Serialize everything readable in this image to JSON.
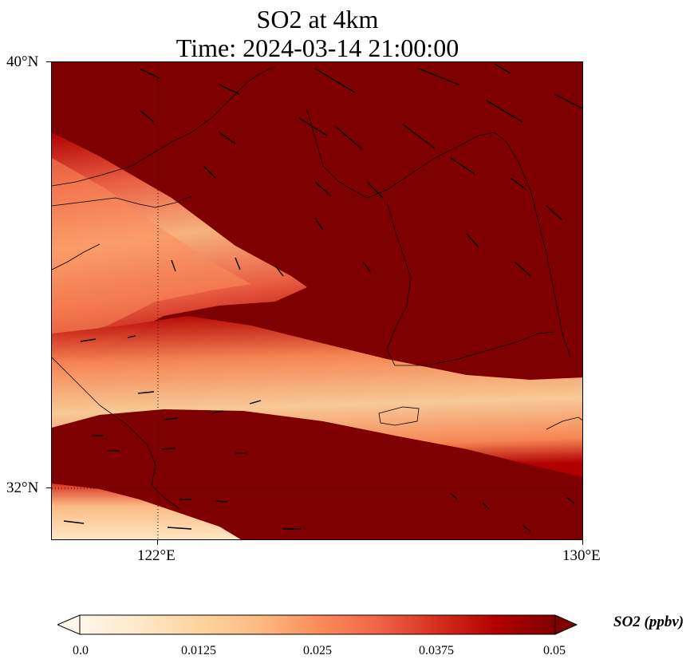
{
  "title": {
    "line1": "SO2 at 4km",
    "line2": "Time: 2024-03-14 21:00:00"
  },
  "axes": {
    "y_ticks": [
      "40°N",
      "32°N"
    ],
    "x_ticks": [
      "122°E",
      "130°E"
    ]
  },
  "colorbar": {
    "label": "SO2 (ppbv)",
    "ticks": [
      "0.0",
      "0.0125",
      "0.025",
      "0.0375",
      "0.05"
    ],
    "range": [
      0.0,
      0.05
    ],
    "extend": "both",
    "colormap": [
      "#fff7ec",
      "#fee8c8",
      "#fdd49e",
      "#fdbb84",
      "#fc8d59",
      "#ef6548",
      "#d7301f",
      "#b30000",
      "#7f0000"
    ]
  },
  "map": {
    "projection": "PlateCarree",
    "lon_range": [
      120,
      130
    ],
    "lat_range": [
      31,
      40
    ],
    "gridlines": "dotted",
    "coastlines": true,
    "wind_vectors": true
  }
}
